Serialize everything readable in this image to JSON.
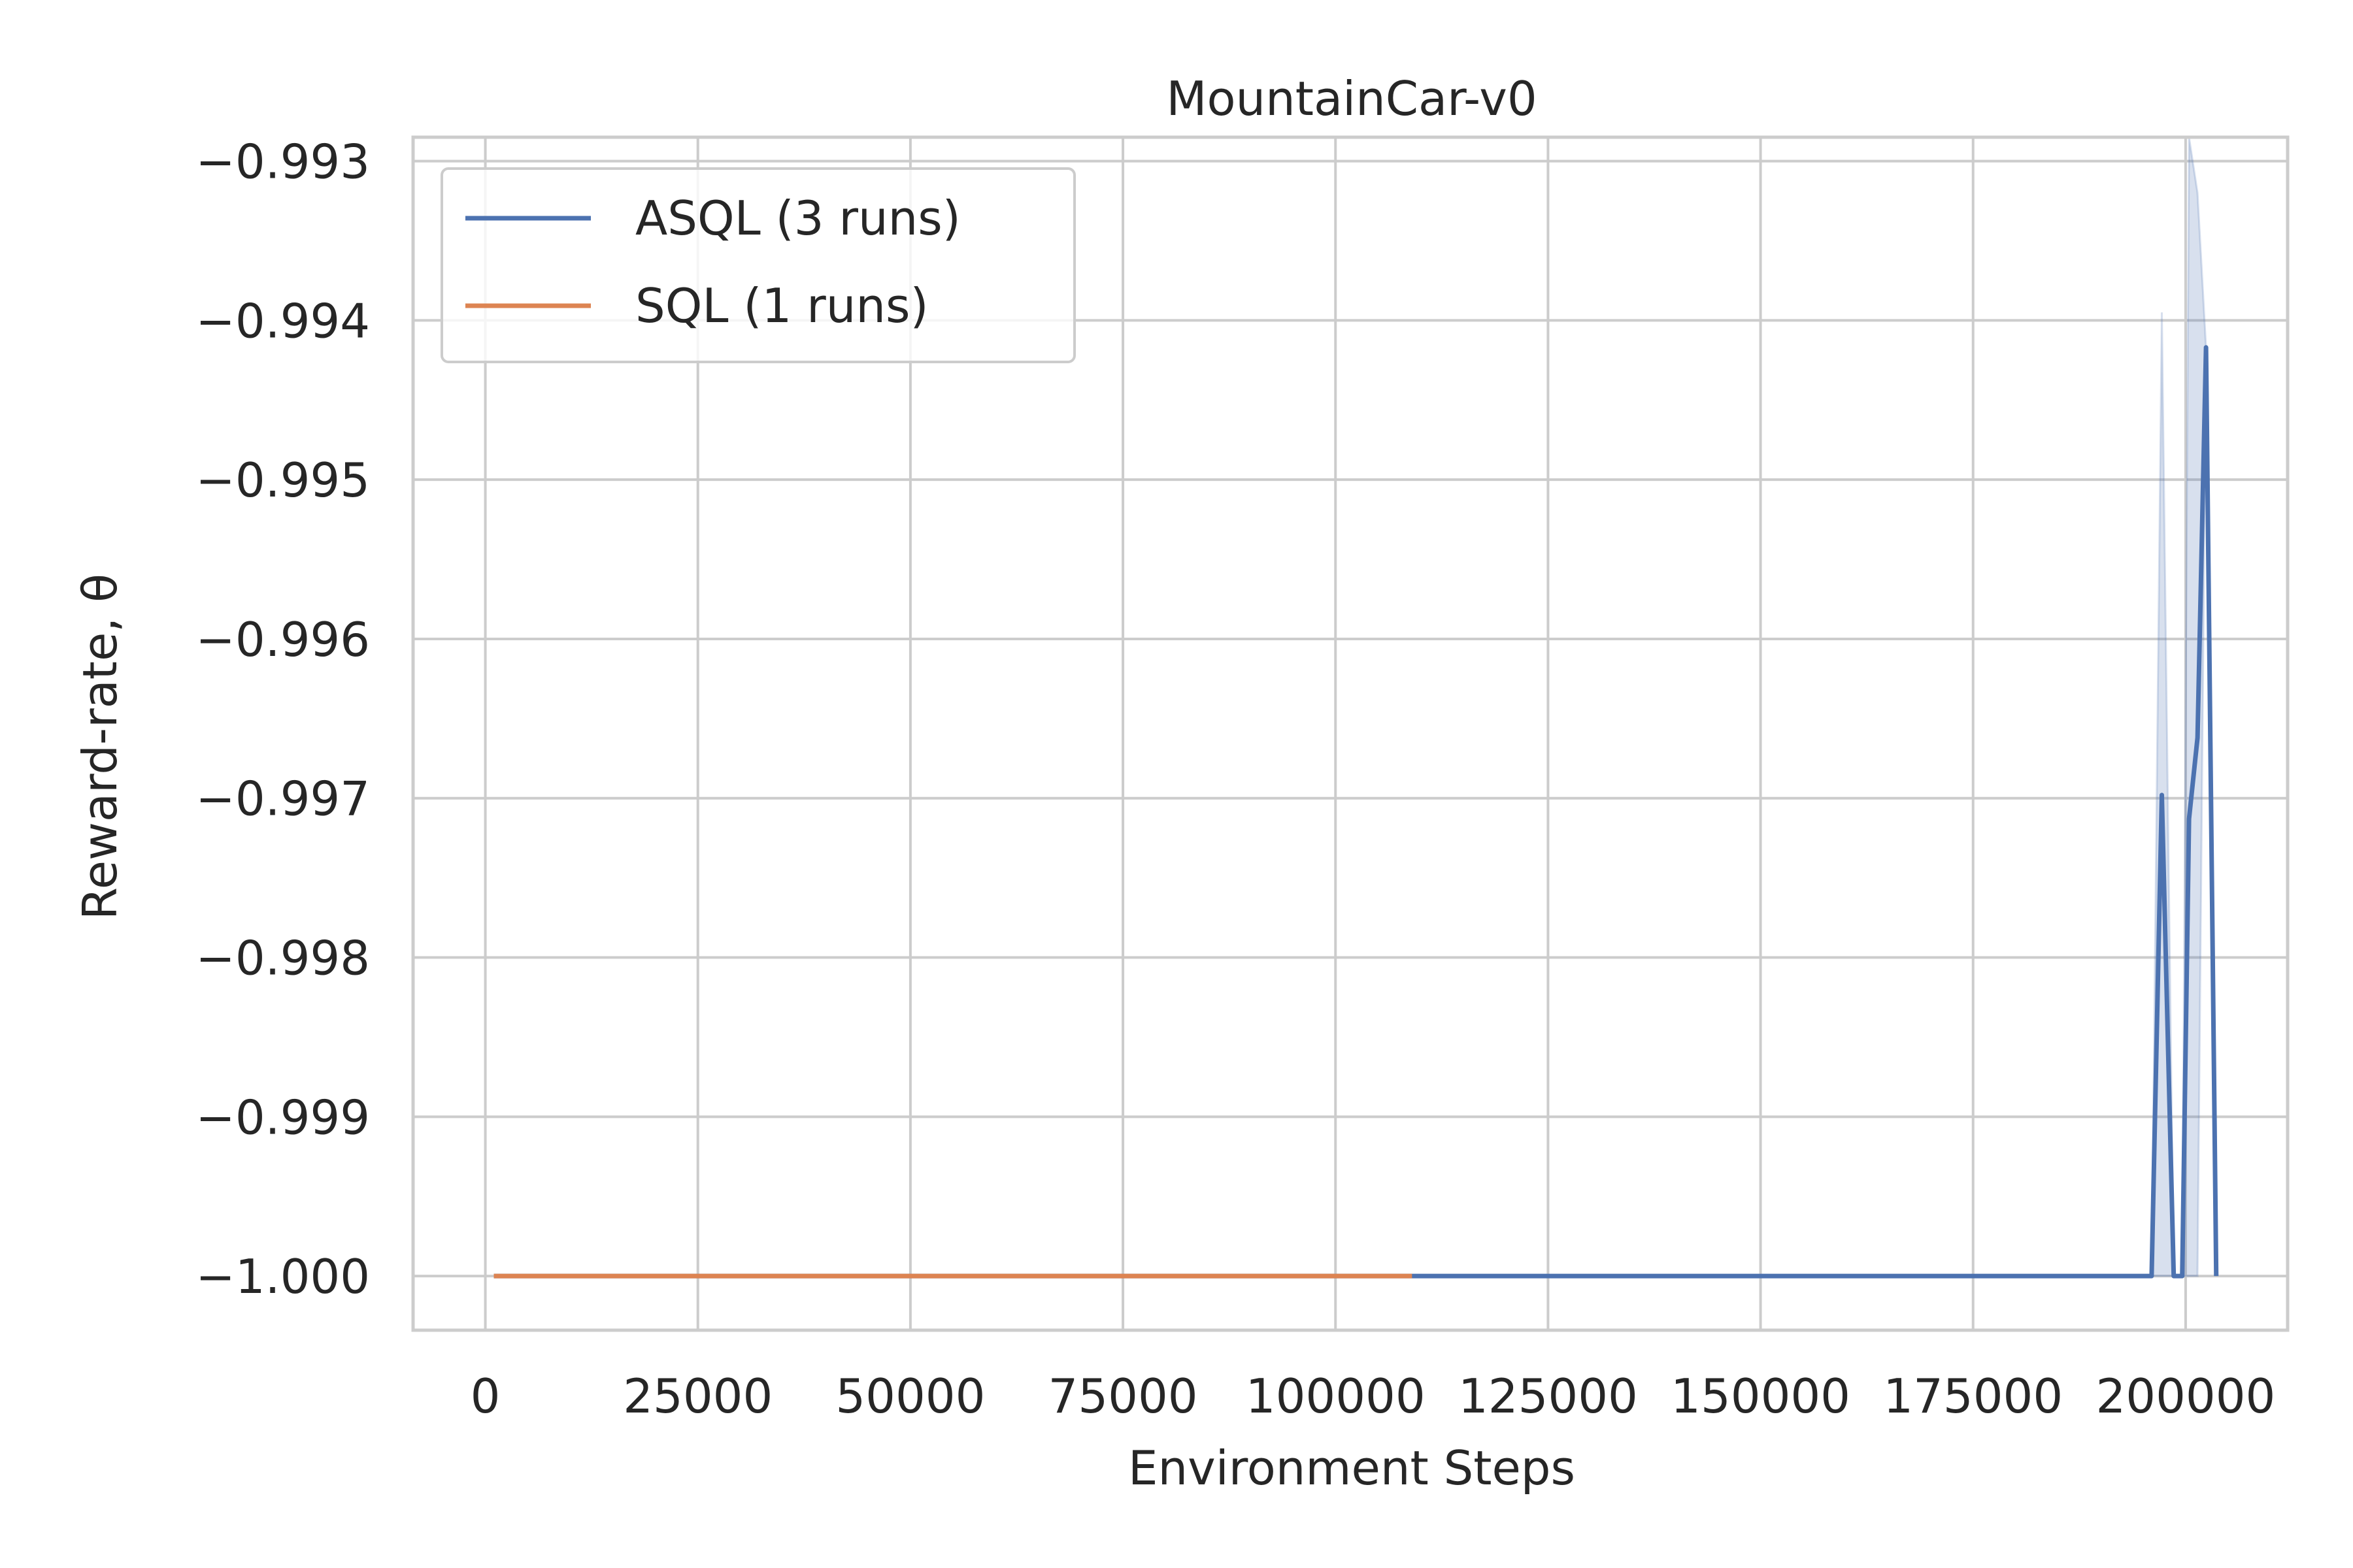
{
  "chart_data": {
    "type": "line",
    "title": "MountainCar-v0",
    "xlabel": "Environment Steps",
    "ylabel": "Reward-rate, θ",
    "xlim": [
      -8500,
      212000
    ],
    "ylim": [
      -1.00034,
      -0.99285
    ],
    "x_ticks": [
      0,
      25000,
      50000,
      75000,
      100000,
      125000,
      150000,
      175000,
      200000
    ],
    "x_tick_labels": [
      "0",
      "25000",
      "50000",
      "75000",
      "100000",
      "125000",
      "150000",
      "175000",
      "200000"
    ],
    "y_ticks": [
      -1.0,
      -0.999,
      -0.998,
      -0.997,
      -0.996,
      -0.995,
      -0.994,
      -0.993
    ],
    "y_tick_labels": [
      "−1.000",
      "−0.999",
      "−0.998",
      "−0.997",
      "−0.996",
      "−0.995",
      "−0.994",
      "−0.993"
    ],
    "grid": true,
    "legend_position": "top-left",
    "series": [
      {
        "name": "ASQL (3 runs)",
        "color": "#4c72b0",
        "x": [
          1000,
          196000,
          197200,
          198600,
          199600,
          200400,
          201400,
          202400,
          203600
        ],
        "y": [
          -1.0,
          -1.0,
          -0.99698,
          -1.0,
          -1.0,
          -0.99713,
          -0.99662,
          -0.99417,
          -1.0
        ],
        "band": {
          "x": [
            196000,
            197200,
            198600,
            199600,
            200400,
            201400,
            202400,
            203600
          ],
          "upper": [
            -1.0,
            -0.99395,
            -1.0,
            -1.0,
            -0.99285,
            -0.9932,
            -0.99417,
            -1.0
          ],
          "lower": [
            -1.0,
            -1.0,
            -1.0,
            -1.0,
            -1.0,
            -1.0,
            -0.99417,
            -1.0
          ]
        }
      },
      {
        "name": "SQL (1 runs)",
        "color": "#dd8452",
        "x": [
          1000,
          109000
        ],
        "y": [
          -1.0,
          -1.0
        ]
      }
    ]
  }
}
